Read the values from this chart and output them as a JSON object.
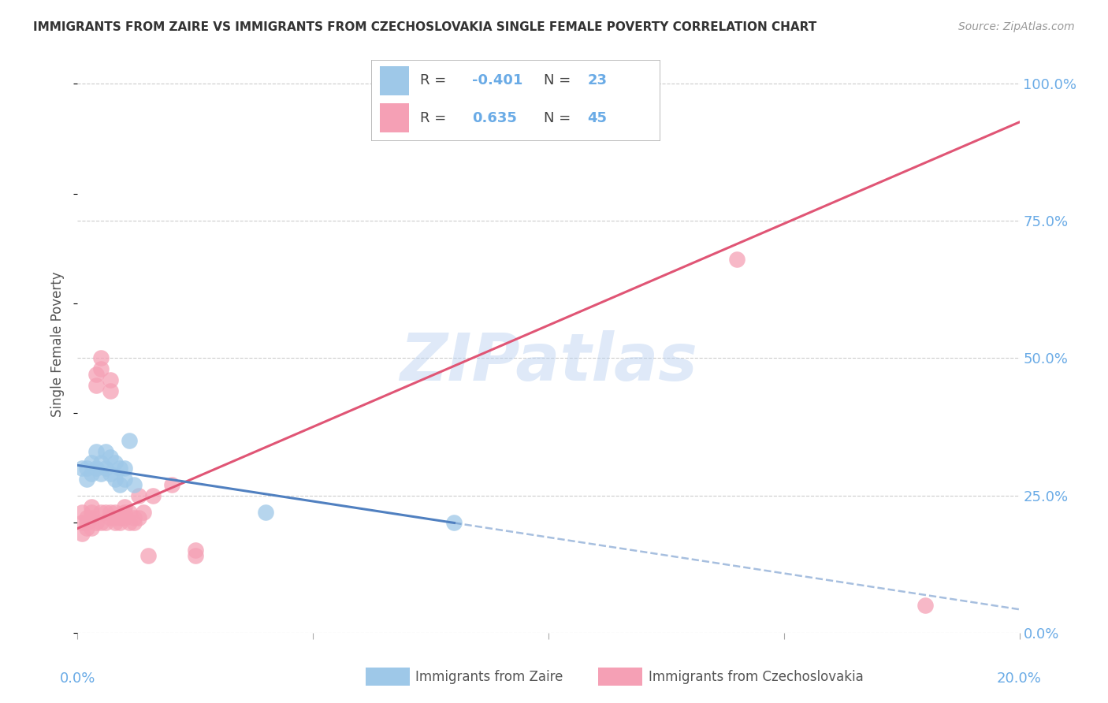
{
  "title": "IMMIGRANTS FROM ZAIRE VS IMMIGRANTS FROM CZECHOSLOVAKIA SINGLE FEMALE POVERTY CORRELATION CHART",
  "source": "Source: ZipAtlas.com",
  "ylabel": "Single Female Poverty",
  "legend_blue_r": "-0.401",
  "legend_blue_n": "23",
  "legend_pink_r": "0.635",
  "legend_pink_n": "45",
  "legend_blue_label": "Immigrants from Zaire",
  "legend_pink_label": "Immigrants from Czechoslovakia",
  "blue_color": "#9ec8e8",
  "pink_color": "#f5a0b5",
  "blue_line_color": "#5080c0",
  "pink_line_color": "#e05575",
  "watermark_text": "ZIPatlas",
  "blue_points_x": [
    0.001,
    0.002,
    0.002,
    0.003,
    0.003,
    0.004,
    0.004,
    0.005,
    0.005,
    0.006,
    0.006,
    0.007,
    0.007,
    0.008,
    0.008,
    0.009,
    0.009,
    0.01,
    0.01,
    0.011,
    0.012,
    0.04,
    0.08
  ],
  "blue_points_y": [
    0.3,
    0.3,
    0.28,
    0.31,
    0.29,
    0.33,
    0.3,
    0.31,
    0.29,
    0.33,
    0.3,
    0.32,
    0.29,
    0.31,
    0.28,
    0.3,
    0.27,
    0.3,
    0.28,
    0.35,
    0.27,
    0.22,
    0.2
  ],
  "pink_points_x": [
    0.001,
    0.001,
    0.001,
    0.002,
    0.002,
    0.002,
    0.003,
    0.003,
    0.003,
    0.003,
    0.004,
    0.004,
    0.004,
    0.005,
    0.005,
    0.005,
    0.005,
    0.006,
    0.006,
    0.007,
    0.007,
    0.007,
    0.007,
    0.008,
    0.008,
    0.008,
    0.009,
    0.009,
    0.01,
    0.01,
    0.01,
    0.011,
    0.011,
    0.012,
    0.012,
    0.013,
    0.013,
    0.014,
    0.015,
    0.016,
    0.02,
    0.025,
    0.025,
    0.14,
    0.18
  ],
  "pink_points_y": [
    0.2,
    0.22,
    0.18,
    0.2,
    0.19,
    0.21,
    0.22,
    0.23,
    0.21,
    0.19,
    0.47,
    0.45,
    0.2,
    0.22,
    0.2,
    0.48,
    0.5,
    0.22,
    0.2,
    0.21,
    0.22,
    0.44,
    0.46,
    0.21,
    0.2,
    0.22,
    0.21,
    0.2,
    0.22,
    0.21,
    0.23,
    0.2,
    0.22,
    0.21,
    0.2,
    0.21,
    0.25,
    0.22,
    0.14,
    0.25,
    0.27,
    0.15,
    0.14,
    0.68,
    0.05
  ],
  "xlim": [
    0.0,
    0.2
  ],
  "ylim": [
    0.0,
    1.05
  ],
  "ytick_vals": [
    0.0,
    0.25,
    0.5,
    0.75,
    1.0
  ],
  "ytick_labels": [
    "0.0%",
    "25.0%",
    "50.0%",
    "75.0%",
    "100.0%"
  ],
  "xtick_minor": [
    0.05,
    0.1,
    0.15
  ],
  "background_color": "#ffffff",
  "grid_color": "#cccccc",
  "axis_color": "#6aabe6",
  "text_color": "#555555"
}
